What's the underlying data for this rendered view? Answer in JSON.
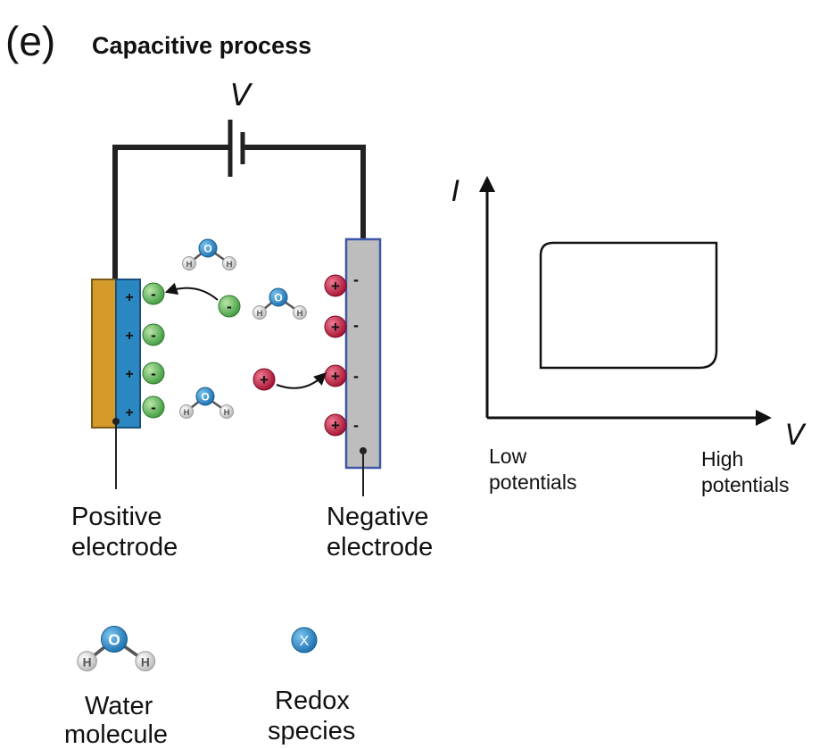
{
  "panel_label": "(e)",
  "title": "Capacitive process",
  "voltage_label": "V",
  "current_axis_label": "I",
  "potential_axis_label": "V",
  "low_potentials": [
    "Low",
    "potentials"
  ],
  "high_potentials": [
    "High",
    "potentials"
  ],
  "positive_electrode": [
    "Positive",
    "electrode"
  ],
  "negative_electrode": [
    "Negative",
    "electrode"
  ],
  "legend": {
    "water": [
      "Water",
      "molecule"
    ],
    "redox": [
      "Redox",
      "species"
    ],
    "redox_symbol": "X"
  },
  "atoms": {
    "oxygen": "O",
    "hydrogen": "H"
  },
  "signs": {
    "plus": "+",
    "minus": "-"
  },
  "colors": {
    "positive_electrode_body": "#d49b2a",
    "positive_electrode_face": "#2b87c2",
    "negative_electrode": "#bdbdbd",
    "negative_electrode_border": "#3e57a8",
    "anion": "#4aa84a",
    "cation": "#b5173b",
    "oxygen": "#1f7fc1",
    "hydrogen": "#d9d9d9"
  }
}
